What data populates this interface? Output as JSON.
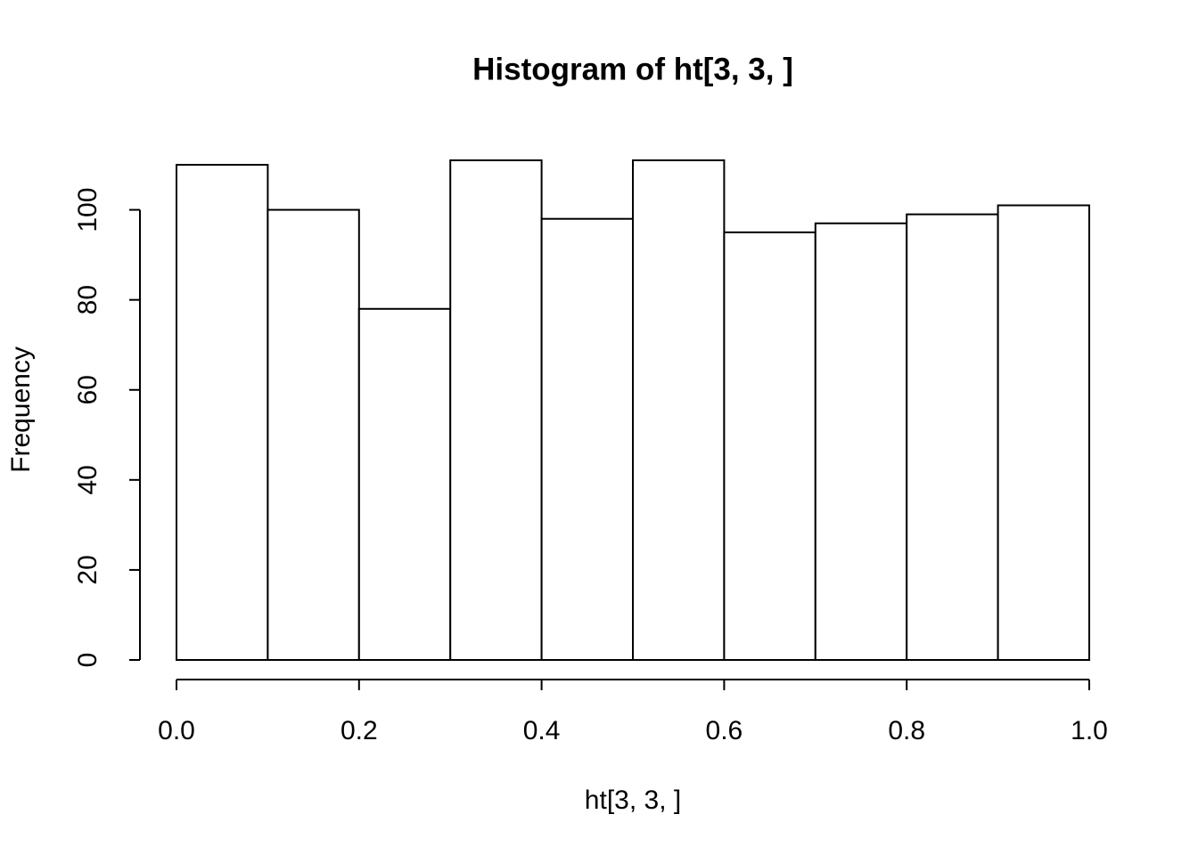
{
  "chart_data": {
    "type": "histogram",
    "title": "Histogram of ht[3, 3, ]",
    "x_label": "ht[3, 3, ]",
    "y_label": "Frequency",
    "bins": [
      0,
      0.1,
      0.2,
      0.3,
      0.4,
      0.5,
      0.6,
      0.7,
      0.8,
      0.9,
      1
    ],
    "values": [
      110,
      100,
      78,
      111,
      98,
      111,
      95,
      97,
      99,
      101
    ],
    "color": "#ffffff",
    "xlim": [
      0,
      1
    ],
    "ylim": [
      0,
      111
    ],
    "xticks": [
      {
        "value": 0,
        "label": "0.0"
      },
      0.2,
      0.4,
      0.6,
      0.8,
      {
        "value": 1,
        "label": "1.0"
      }
    ],
    "yticks": [
      0,
      20,
      40,
      60,
      80,
      100
    ]
  }
}
